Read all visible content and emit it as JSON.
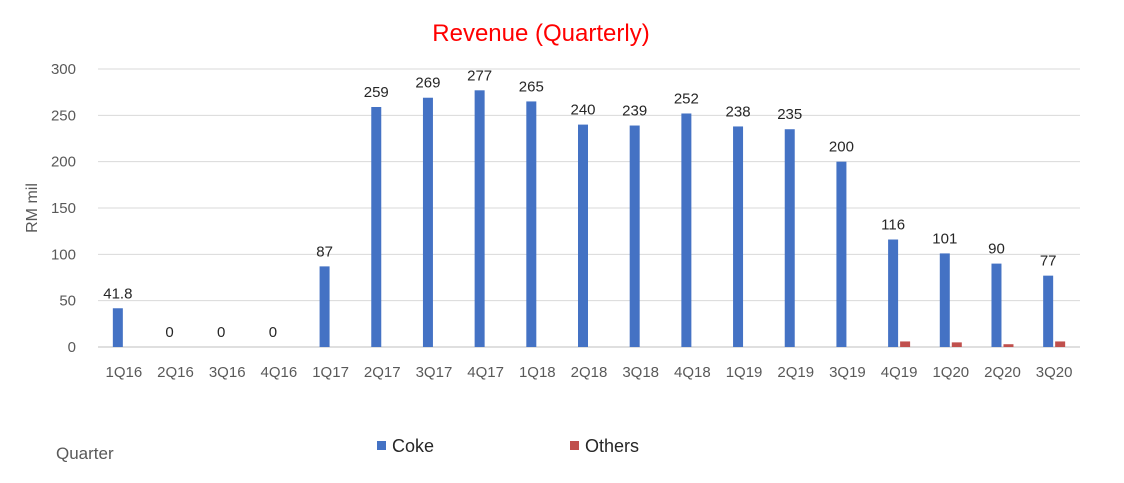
{
  "chart_data": {
    "type": "bar",
    "title": "Revenue (Quarterly)",
    "xlabel": "Quarter",
    "ylabel": "RM mil",
    "ylim": [
      0,
      300
    ],
    "yticks": [
      0,
      50,
      100,
      150,
      200,
      250,
      300
    ],
    "grid": true,
    "legend_position": "bottom",
    "categories": [
      "1Q16",
      "2Q16",
      "3Q16",
      "4Q16",
      "1Q17",
      "2Q17",
      "3Q17",
      "4Q17",
      "1Q18",
      "2Q18",
      "3Q18",
      "4Q18",
      "1Q19",
      "2Q19",
      "3Q19",
      "4Q19",
      "1Q20",
      "2Q20",
      "3Q20"
    ],
    "series": [
      {
        "name": "Coke",
        "color": "#4472C4",
        "values": [
          41.8,
          0,
          0,
          0,
          87,
          259,
          269,
          277,
          265,
          240,
          239,
          252,
          238,
          235,
          200,
          116,
          101,
          90,
          77
        ],
        "labels": [
          "41.8",
          "0",
          "0",
          "0",
          "87",
          "259",
          "269",
          "277",
          "265",
          "240",
          "239",
          "252",
          "238",
          "235",
          "200",
          "116",
          "101",
          "90",
          "77"
        ]
      },
      {
        "name": "Others",
        "color": "#C0504D",
        "values": [
          0,
          0,
          0,
          0,
          0,
          0,
          0,
          0,
          0,
          0,
          0,
          0,
          0,
          0,
          0,
          6,
          5,
          3,
          6
        ]
      }
    ],
    "title_color": "#FF0000"
  }
}
